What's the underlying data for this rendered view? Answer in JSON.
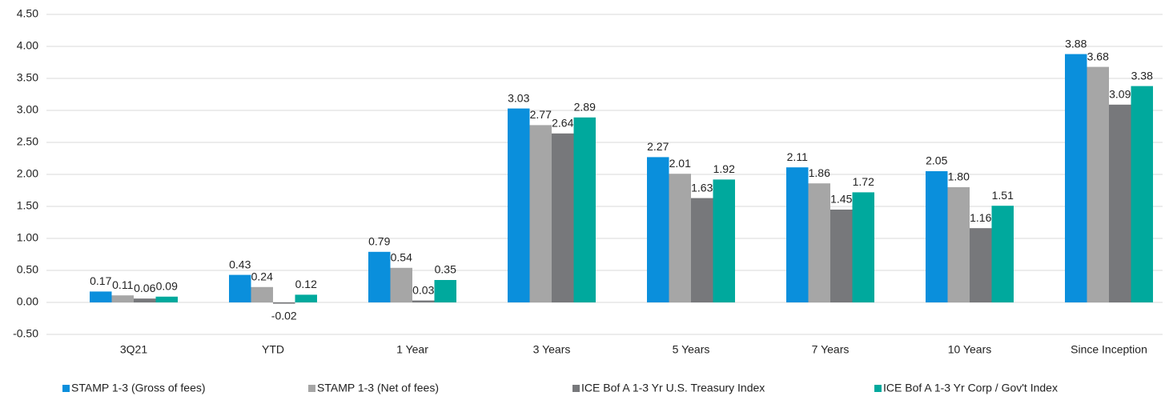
{
  "chart_data": {
    "type": "bar",
    "categories": [
      "3Q21",
      "YTD",
      "1 Year",
      "3 Years",
      "5 Years",
      "7 Years",
      "10 Years",
      "Since Inception"
    ],
    "series": [
      {
        "name": "STAMP 1-3 (Gross of fees)",
        "color": "#0a8fdc",
        "values": [
          0.17,
          0.43,
          0.79,
          3.03,
          2.27,
          2.11,
          2.05,
          3.88
        ],
        "value_labels": [
          "0.17",
          "0.43",
          "0.79",
          "3.03",
          "2.27",
          "2.11",
          "2.05",
          "3.88"
        ]
      },
      {
        "name": "STAMP 1-3 (Net of fees)",
        "color": "#a6a6a6",
        "values": [
          0.11,
          0.24,
          0.54,
          2.77,
          2.01,
          1.86,
          1.8,
          3.68
        ],
        "value_labels": [
          "0.11",
          "0.24",
          "0.54",
          "2.77",
          "2.01",
          "1.86",
          "1.80",
          "3.68"
        ]
      },
      {
        "name": "ICE Bof A 1-3 Yr U.S. Treasury Index",
        "color": "#77787b",
        "values": [
          0.06,
          -0.02,
          0.03,
          2.64,
          1.63,
          1.45,
          1.16,
          3.09
        ],
        "value_labels": [
          "0.06",
          "-0.02",
          "0.03",
          "2.64",
          "1.63",
          "1.45",
          "1.16",
          "3.09"
        ]
      },
      {
        "name": "ICE Bof A 1-3 Yr Corp / Gov't Index",
        "color": "#00a99d",
        "values": [
          0.09,
          0.12,
          0.35,
          2.89,
          1.92,
          1.72,
          1.51,
          3.38
        ],
        "value_labels": [
          "0.09",
          "0.12",
          "0.35",
          "2.89",
          "1.92",
          "1.72",
          "1.51",
          "3.38"
        ]
      }
    ],
    "ylim": [
      -0.5,
      4.5
    ],
    "yticks": [
      {
        "value": -0.5,
        "label": "-0.50"
      },
      {
        "value": 0,
        "label": "0.00"
      },
      {
        "value": 0.5,
        "label": "0.50"
      },
      {
        "value": 1,
        "label": "1.00"
      },
      {
        "value": 1.5,
        "label": "1.50"
      },
      {
        "value": 2,
        "label": "2.00"
      },
      {
        "value": 2.5,
        "label": "2.50"
      },
      {
        "value": 3,
        "label": "3.00"
      },
      {
        "value": 3.5,
        "label": "3.50"
      },
      {
        "value": 4,
        "label": "4.00"
      },
      {
        "value": 4.5,
        "label": "4.50"
      }
    ],
    "grid": true,
    "legend": "bottom"
  }
}
